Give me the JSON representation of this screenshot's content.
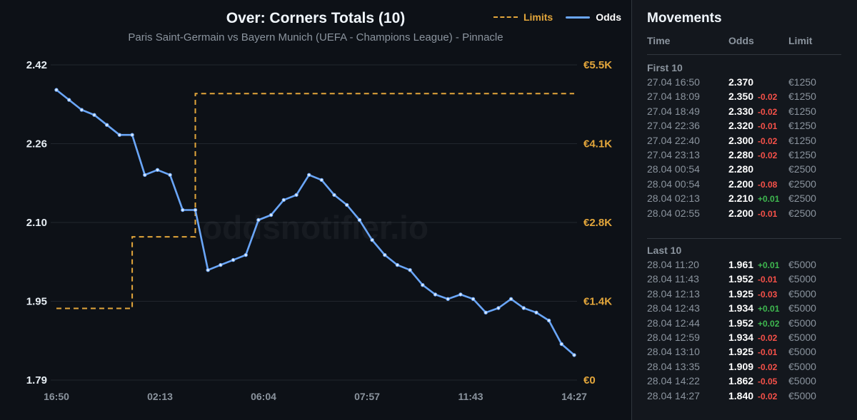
{
  "chart_data": {
    "type": "line",
    "title": "Over: Corners Totals (10)",
    "subtitle": "Paris Saint-Germain vs Bayern Munich (UEFA - Champions League) - Pinnacle",
    "watermark": "oddsnotifier.io",
    "legend": {
      "position": "top-right",
      "items": [
        "Limits",
        "Odds"
      ]
    },
    "x_tick_labels": [
      "16:50",
      "02:13",
      "06:04",
      "07:57",
      "11:43",
      "14:27"
    ],
    "y_left": {
      "ticks": [
        "2.42",
        "2.26",
        "2.10",
        "1.95",
        "1.79"
      ],
      "ylim": [
        1.79,
        2.42
      ]
    },
    "y_right": {
      "ticks": [
        "€5.5K",
        "€4.1K",
        "€2.8K",
        "€1.4K",
        "€0"
      ],
      "ylim": [
        0,
        5500
      ]
    },
    "grid": true,
    "series": [
      {
        "name": "Odds",
        "color": "#6aa6f8",
        "values": [
          2.37,
          2.35,
          2.33,
          2.32,
          2.3,
          2.28,
          2.28,
          2.2,
          2.21,
          2.2,
          2.13,
          2.13,
          2.01,
          2.02,
          2.03,
          2.04,
          2.11,
          2.12,
          2.15,
          2.16,
          2.2,
          2.19,
          2.16,
          2.14,
          2.11,
          2.07,
          2.04,
          2.02,
          2.01,
          1.98,
          1.961,
          1.952,
          1.961,
          1.952,
          1.925,
          1.934,
          1.952,
          1.934,
          1.925,
          1.909,
          1.862,
          1.84
        ]
      },
      {
        "name": "Limits",
        "color": "#e3a63b",
        "style": "dashed-step",
        "points": [
          {
            "t": 0,
            "v": 1250
          },
          {
            "t": 6,
            "v": 1250
          },
          {
            "t": 6,
            "v": 2500
          },
          {
            "t": 11,
            "v": 2500
          },
          {
            "t": 11,
            "v": 5000
          },
          {
            "t": 41,
            "v": 5000
          }
        ]
      }
    ]
  },
  "movements": {
    "title": "Movements",
    "columns": {
      "time": "Time",
      "odds": "Odds",
      "limit": "Limit"
    },
    "groups": [
      {
        "label": "First 10",
        "rows": [
          {
            "time": "27.04 16:50",
            "odds": "2.370",
            "delta": "",
            "limit": "€1250"
          },
          {
            "time": "27.04 18:09",
            "odds": "2.350",
            "delta": "-0.02",
            "limit": "€1250"
          },
          {
            "time": "27.04 18:49",
            "odds": "2.330",
            "delta": "-0.02",
            "limit": "€1250"
          },
          {
            "time": "27.04 22:36",
            "odds": "2.320",
            "delta": "-0.01",
            "limit": "€1250"
          },
          {
            "time": "27.04 22:40",
            "odds": "2.300",
            "delta": "-0.02",
            "limit": "€1250"
          },
          {
            "time": "27.04 23:13",
            "odds": "2.280",
            "delta": "-0.02",
            "limit": "€1250"
          },
          {
            "time": "28.04 00:54",
            "odds": "2.280",
            "delta": "",
            "limit": "€2500"
          },
          {
            "time": "28.04 00:54",
            "odds": "2.200",
            "delta": "-0.08",
            "limit": "€2500"
          },
          {
            "time": "28.04 02:13",
            "odds": "2.210",
            "delta": "+0.01",
            "limit": "€2500"
          },
          {
            "time": "28.04 02:55",
            "odds": "2.200",
            "delta": "-0.01",
            "limit": "€2500"
          }
        ]
      },
      {
        "label": "Last 10",
        "rows": [
          {
            "time": "28.04 11:20",
            "odds": "1.961",
            "delta": "+0.01",
            "limit": "€5000"
          },
          {
            "time": "28.04 11:43",
            "odds": "1.952",
            "delta": "-0.01",
            "limit": "€5000"
          },
          {
            "time": "28.04 12:13",
            "odds": "1.925",
            "delta": "-0.03",
            "limit": "€5000"
          },
          {
            "time": "28.04 12:43",
            "odds": "1.934",
            "delta": "+0.01",
            "limit": "€5000"
          },
          {
            "time": "28.04 12:44",
            "odds": "1.952",
            "delta": "+0.02",
            "limit": "€5000"
          },
          {
            "time": "28.04 12:59",
            "odds": "1.934",
            "delta": "-0.02",
            "limit": "€5000"
          },
          {
            "time": "28.04 13:10",
            "odds": "1.925",
            "delta": "-0.01",
            "limit": "€5000"
          },
          {
            "time": "28.04 13:35",
            "odds": "1.909",
            "delta": "-0.02",
            "limit": "€5000"
          },
          {
            "time": "28.04 14:22",
            "odds": "1.862",
            "delta": "-0.05",
            "limit": "€5000"
          },
          {
            "time": "28.04 14:27",
            "odds": "1.840",
            "delta": "-0.02",
            "limit": "€5000"
          }
        ]
      }
    ]
  }
}
